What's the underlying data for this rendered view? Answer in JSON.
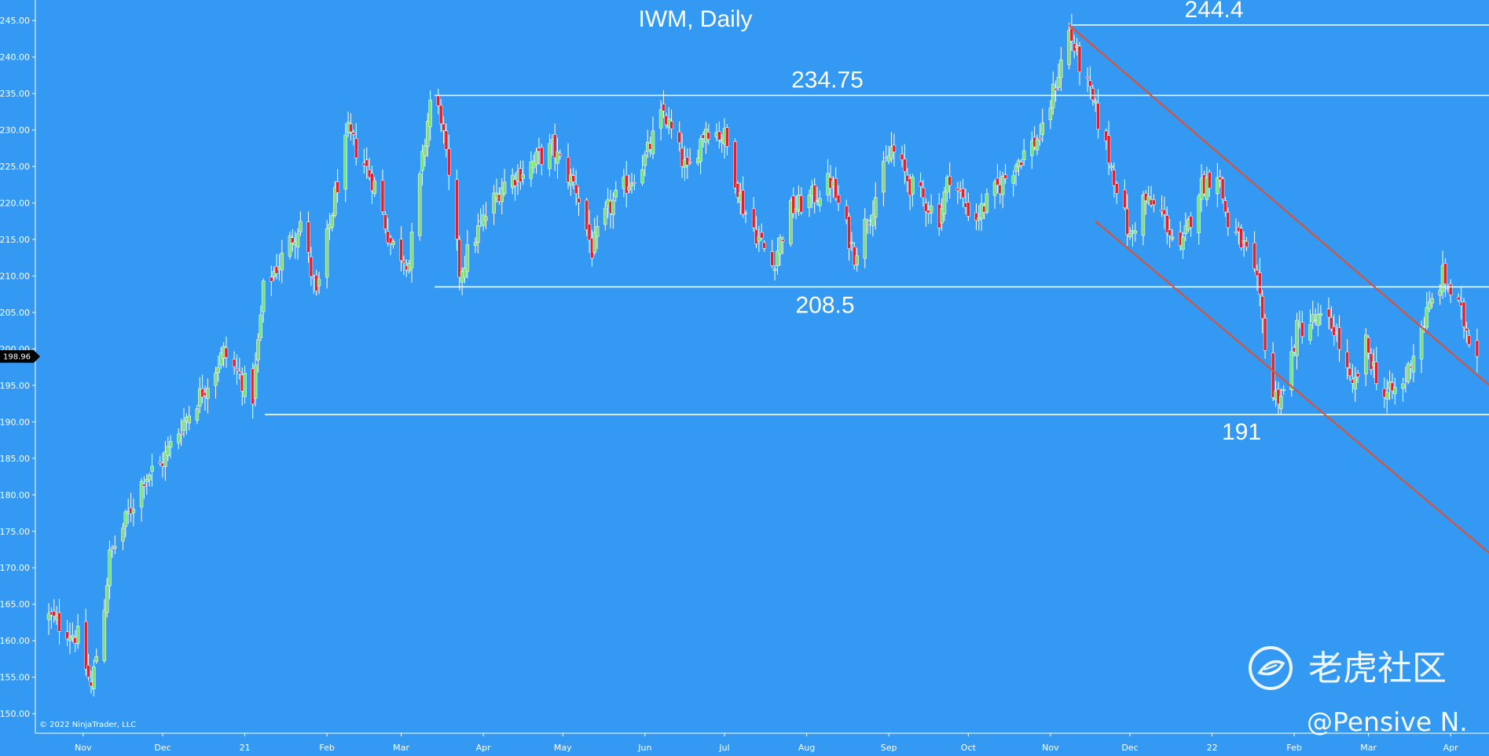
{
  "chart_data": {
    "type": "candlestick",
    "title": "IWM, Daily",
    "ylim": [
      147,
      247.5
    ],
    "y_ticks": [
      "245.00",
      "240.00",
      "235.00",
      "230.00",
      "225.00",
      "220.00",
      "215.00",
      "210.00",
      "205.00",
      "200.00",
      "195.00",
      "190.00",
      "185.00",
      "180.00",
      "175.00",
      "170.00",
      "165.00",
      "160.00",
      "155.00",
      "150.00"
    ],
    "x_ticks": [
      "Nov",
      "Dec",
      "21",
      "Feb",
      "Mar",
      "Apr",
      "May",
      "Jun",
      "Jul",
      "Aug",
      "Sep",
      "Oct",
      "Nov",
      "Dec",
      "22",
      "Feb",
      "Mar",
      "Apr"
    ],
    "last_price": "198.96",
    "colors": {
      "background": "#3399f3",
      "up_candle": "#7fe07a",
      "down_candle": "#e0202a",
      "wick": "#ffffff",
      "level_line": "#ffffff",
      "channel_line": "#d9533a",
      "badge": "#000000"
    },
    "levels": [
      {
        "label": "244.4",
        "value": 244.4
      },
      {
        "label": "234.75",
        "value": 234.75
      },
      {
        "label": "208.5",
        "value": 208.5
      },
      {
        "label": "191",
        "value": 191
      }
    ],
    "channel": {
      "upper": {
        "from": {
          "date": "2021-11-08",
          "value": 244.4
        },
        "to": {
          "date": "2022-04-14",
          "value": 195.5
        }
      },
      "lower": {
        "from": {
          "date": "2021-11-18",
          "value": 217.5
        },
        "to": {
          "date": "2022-04-14",
          "value": 172.5
        }
      }
    },
    "anchors": [
      [
        "2020-10-19",
        163.2
      ],
      [
        "2020-10-30",
        160.5
      ],
      [
        "2020-11-04",
        153.5
      ],
      [
        "2020-11-09",
        165.0
      ],
      [
        "2020-11-11",
        171.5
      ],
      [
        "2020-11-16",
        175.5
      ],
      [
        "2020-11-24",
        182.5
      ],
      [
        "2020-11-30",
        184.0
      ],
      [
        "2020-12-08",
        189.5
      ],
      [
        "2020-12-18",
        195.5
      ],
      [
        "2020-12-24",
        199.5
      ],
      [
        "2021-01-04",
        193.5
      ],
      [
        "2021-01-08",
        208.0
      ],
      [
        "2021-01-15",
        212.5
      ],
      [
        "2021-01-22",
        217.5
      ],
      [
        "2021-01-28",
        207.0
      ],
      [
        "2021-02-04",
        221.0
      ],
      [
        "2021-02-09",
        229.5
      ],
      [
        "2021-02-19",
        222.5
      ],
      [
        "2021-02-25",
        214.5
      ],
      [
        "2021-03-04",
        212.0
      ],
      [
        "2021-03-12",
        234.0
      ],
      [
        "2021-03-16",
        232.0
      ],
      [
        "2021-03-23",
        210.5
      ],
      [
        "2021-03-29",
        215.5
      ],
      [
        "2021-04-08",
        222.5
      ],
      [
        "2021-04-16",
        224.5
      ],
      [
        "2021-04-27",
        227.5
      ],
      [
        "2021-05-06",
        222.0
      ],
      [
        "2021-05-12",
        213.5
      ],
      [
        "2021-05-18",
        219.0
      ],
      [
        "2021-06-01",
        226.0
      ],
      [
        "2021-06-08",
        232.5
      ],
      [
        "2021-06-17",
        224.0
      ],
      [
        "2021-06-24",
        230.5
      ],
      [
        "2021-07-01",
        229.0
      ],
      [
        "2021-07-08",
        219.5
      ],
      [
        "2021-07-19",
        211.5
      ],
      [
        "2021-07-26",
        219.0
      ],
      [
        "2021-08-04",
        221.0
      ],
      [
        "2021-08-10",
        223.0
      ],
      [
        "2021-08-19",
        213.0
      ],
      [
        "2021-08-27",
        221.0
      ],
      [
        "2021-09-02",
        227.5
      ],
      [
        "2021-09-09",
        222.5
      ],
      [
        "2021-09-20",
        218.0
      ],
      [
        "2021-09-24",
        224.0
      ],
      [
        "2021-09-30",
        219.5
      ],
      [
        "2021-10-04",
        218.0
      ],
      [
        "2021-10-12",
        222.0
      ],
      [
        "2021-10-21",
        226.5
      ],
      [
        "2021-10-29",
        229.5
      ],
      [
        "2021-11-08",
        243.5
      ],
      [
        "2021-11-12",
        239.0
      ],
      [
        "2021-11-18",
        232.5
      ],
      [
        "2021-11-22",
        227.5
      ],
      [
        "2021-11-26",
        222.5
      ],
      [
        "2021-12-01",
        215.0
      ],
      [
        "2021-12-06",
        220.5
      ],
      [
        "2021-12-13",
        218.5
      ],
      [
        "2021-12-20",
        213.0
      ],
      [
        "2021-12-27",
        222.0
      ],
      [
        "2022-01-03",
        224.5
      ],
      [
        "2022-01-07",
        217.0
      ],
      [
        "2022-01-13",
        214.0
      ],
      [
        "2022-01-18",
        208.5
      ],
      [
        "2022-01-24",
        193.5
      ],
      [
        "2022-01-28",
        194.0
      ],
      [
        "2022-02-02",
        202.5
      ],
      [
        "2022-02-09",
        204.0
      ],
      [
        "2022-02-16",
        203.0
      ],
      [
        "2022-02-23",
        194.0
      ],
      [
        "2022-02-28",
        200.5
      ],
      [
        "2022-03-07",
        193.5
      ],
      [
        "2022-03-14",
        195.0
      ],
      [
        "2022-03-21",
        203.0
      ],
      [
        "2022-03-29",
        210.0
      ],
      [
        "2022-04-04",
        205.5
      ],
      [
        "2022-04-11",
        198.96
      ]
    ],
    "watermark": "老虎社区",
    "handle": "@Pensive N.",
    "copyright": "© 2022 NinjaTrader, LLC"
  }
}
